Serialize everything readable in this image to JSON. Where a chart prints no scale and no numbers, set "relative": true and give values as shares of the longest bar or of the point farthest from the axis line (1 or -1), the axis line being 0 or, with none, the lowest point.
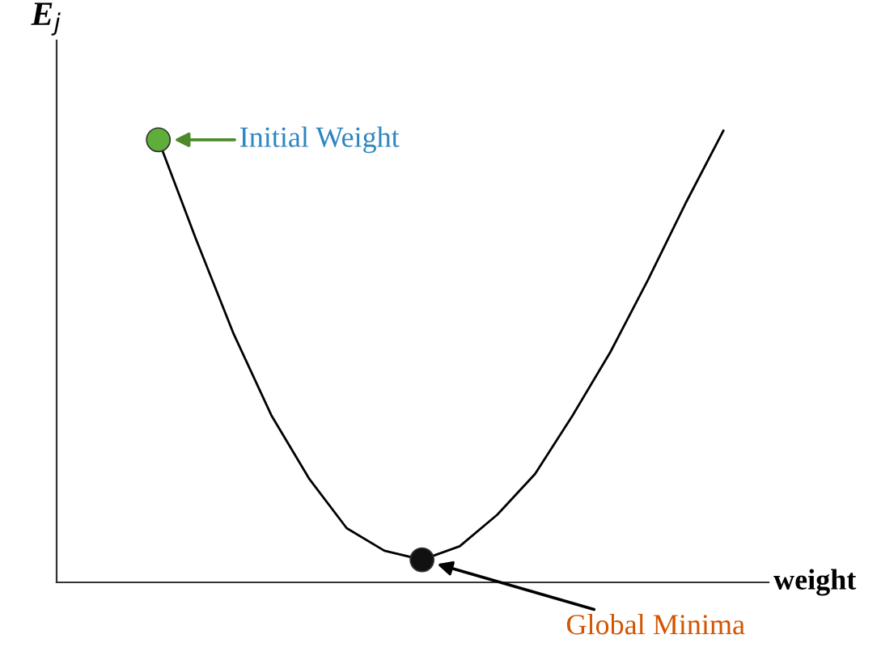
{
  "chart_data": {
    "type": "line",
    "relative": true,
    "xlabel": "weight",
    "ylabel": "E$_{j}$",
    "categories": [
      null,
      null,
      null,
      null,
      null,
      null,
      null,
      null,
      null,
      null,
      null,
      null,
      null,
      null,
      null,
      null
    ],
    "series": [
      {
        "color": "#000000",
        "values": [
          0.98,
          0.76,
          0.55,
          0.37,
          0.23,
          0.12,
          0.07,
          0.05,
          0.08,
          0.15,
          0.24,
          0.37,
          0.51,
          0.67,
          0.84,
          1.0
        ]
      }
    ],
    "annotations": [
      "Initial Weight",
      "Global Minima"
    ]
  }
}
